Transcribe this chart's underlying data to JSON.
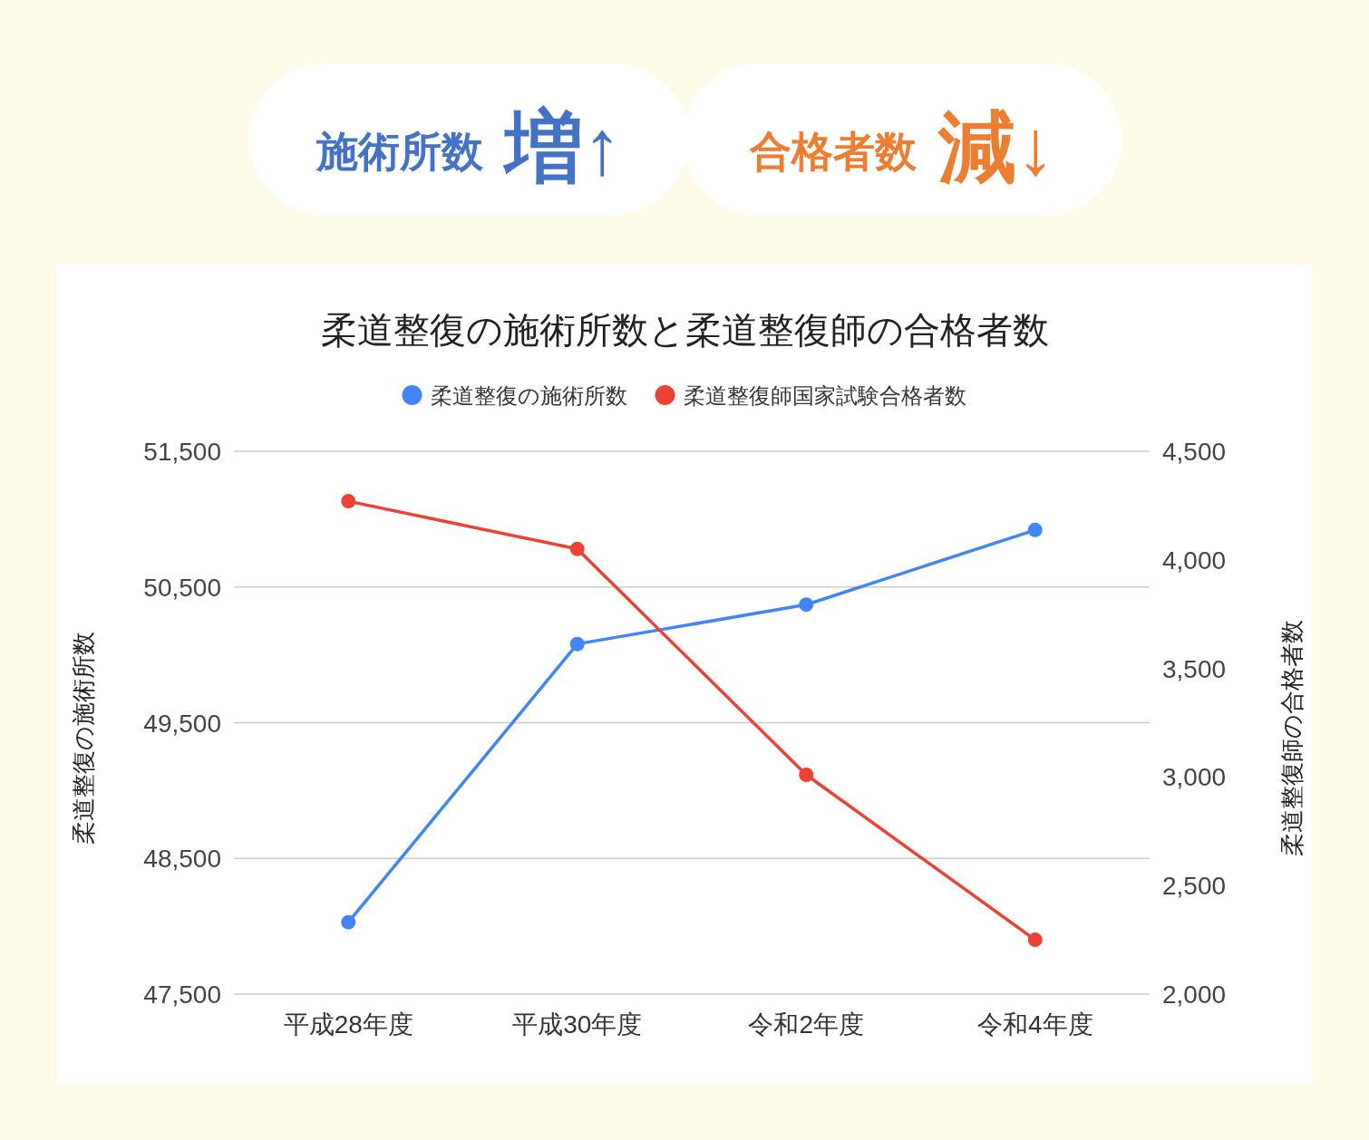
{
  "chart_data": {
    "type": "line",
    "title": "柔道整復の施術所数と柔道整復師の合格者数",
    "annotations": [
      "施術所数",
      "増↑",
      "合格者数",
      "減↓"
    ],
    "categories": [
      "平成28年度",
      "平成30年度",
      "令和2年度",
      "令和4年度"
    ],
    "series": [
      {
        "name": "柔道整復の施術所数",
        "color": "#4285f4",
        "values": [
          48030,
          50080,
          50370,
          50920
        ]
      },
      {
        "name": "柔道整復師国家試験合格者数",
        "color": "#ea4335",
        "axis": "y2",
        "values": [
          4270,
          4050,
          3010,
          2250
        ]
      }
    ],
    "ylabel": "柔道整復の施術所数",
    "y2label": "柔道整復師の合格者数",
    "ylim": [
      47500,
      51500
    ],
    "yticks": [
      {
        "value": 47500,
        "label": "47,500"
      },
      {
        "value": 48500,
        "label": "48,500"
      },
      {
        "value": 49500,
        "label": "49,500"
      },
      {
        "value": 50500,
        "label": "50,500"
      },
      {
        "value": 51500,
        "label": "51,500"
      }
    ],
    "y2lim": [
      2000,
      4500
    ],
    "y2ticks": [
      {
        "value": 2000,
        "label": "2,000"
      },
      {
        "value": 2500,
        "label": "2,500"
      },
      {
        "value": 3000,
        "label": "3,000"
      },
      {
        "value": 3500,
        "label": "3,500"
      },
      {
        "value": 4000,
        "label": "4,000"
      },
      {
        "value": 4500,
        "label": "4,500"
      }
    ],
    "grid": "y",
    "legend": "top",
    "marker": "circle",
    "line_style": "solid"
  }
}
